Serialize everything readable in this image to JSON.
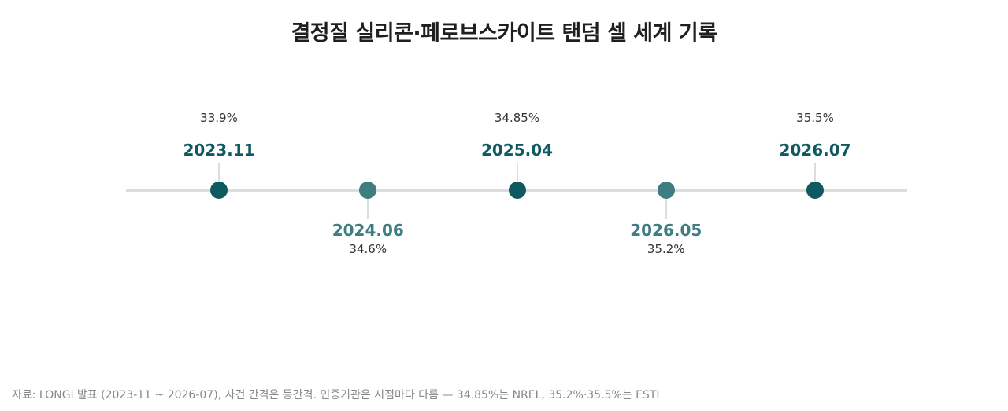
{
  "title": "결정질 실리콘·페로브스카이트 탠덤 셀 세계 기록",
  "colors": {
    "primary": "#0f5a60",
    "secondary": "#3e7d80",
    "axis": "#dddddd"
  },
  "chart_data": {
    "type": "timeline",
    "events": [
      {
        "date": "2023.11",
        "value": "33.9%",
        "efficiency": 33.9,
        "label_side": "above",
        "color": "primary"
      },
      {
        "date": "2024.06",
        "value": "34.6%",
        "efficiency": 34.6,
        "label_side": "below",
        "color": "secondary"
      },
      {
        "date": "2025.04",
        "value": "34.85%",
        "efficiency": 34.85,
        "label_side": "above",
        "color": "primary"
      },
      {
        "date": "2026.05",
        "value": "35.2%",
        "efficiency": 35.2,
        "label_side": "below",
        "color": "secondary"
      },
      {
        "date": "2026.07",
        "value": "35.5%",
        "efficiency": 35.5,
        "label_side": "above",
        "color": "primary"
      }
    ]
  },
  "source": "자료: LONGi 발표 (2023-11 ~ 2026-07), 사건 간격은 등간격. 인증기관은 시점마다 다름 — 34.85%는 NREL, 35.2%·35.5%는 ESTI"
}
